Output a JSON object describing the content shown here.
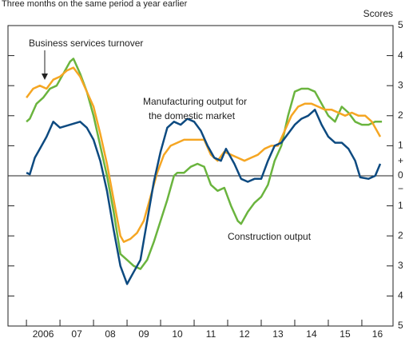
{
  "chart_data": {
    "type": "line",
    "subtitle": "Three months on the same period a year earlier",
    "y_axis_label": "Scores",
    "plus_label": "+",
    "minus_label": "−",
    "annotations": [
      "Business services turnover",
      "Manufacturing output for",
      "the domestic market",
      "Construction output"
    ],
    "categories": [
      "2006",
      "07",
      "08",
      "09",
      "10",
      "11",
      "12",
      "13",
      "14",
      "15",
      "16"
    ],
    "xlim": [
      2005.45,
      2016.93
    ],
    "xticks": [
      2006,
      2007,
      2008,
      2009,
      2010,
      2011,
      2012,
      2013,
      2014,
      2015,
      2016
    ],
    "ylim": [
      -5,
      5
    ],
    "yticks": [
      {
        "value": -5,
        "label": "5"
      },
      {
        "value": -4,
        "label": "4"
      },
      {
        "value": -3,
        "label": "3"
      },
      {
        "value": -2,
        "label": "2"
      },
      {
        "value": -1,
        "label": "1"
      },
      0,
      1,
      2,
      3,
      4,
      5
    ],
    "series": [
      {
        "name": "Construction output",
        "color": "#6ab43e",
        "x": [
          2006.0,
          2006.1,
          2006.3,
          2006.5,
          2006.7,
          2006.9,
          2007.1,
          2007.3,
          2007.4,
          2007.6,
          2007.8,
          2008.0,
          2008.2,
          2008.4,
          2008.6,
          2008.8,
          2009.0,
          2009.2,
          2009.4,
          2009.6,
          2009.8,
          2010.0,
          2010.2,
          2010.4,
          2010.5,
          2010.7,
          2010.9,
          2011.1,
          2011.3,
          2011.5,
          2011.7,
          2011.9,
          2012.1,
          2012.3,
          2012.4,
          2012.6,
          2012.8,
          2013.0,
          2013.2,
          2013.4,
          2013.6,
          2013.8,
          2014.0,
          2014.2,
          2014.4,
          2014.6,
          2014.8,
          2015.0,
          2015.2,
          2015.4,
          2015.6,
          2015.8,
          2016.0,
          2016.2,
          2016.4,
          2016.6
        ],
        "values": [
          1.8,
          1.9,
          2.4,
          2.6,
          2.9,
          3.0,
          3.4,
          3.8,
          3.9,
          3.4,
          2.8,
          2.0,
          1.0,
          0.0,
          -1.2,
          -2.6,
          -2.8,
          -3.0,
          -3.1,
          -2.8,
          -2.2,
          -1.5,
          -0.8,
          0.0,
          0.1,
          0.1,
          0.3,
          0.4,
          0.3,
          -0.3,
          -0.5,
          -0.4,
          -1.0,
          -1.5,
          -1.6,
          -1.2,
          -0.9,
          -0.7,
          -0.3,
          0.5,
          1.0,
          2.0,
          2.8,
          2.9,
          2.9,
          2.8,
          2.4,
          2.0,
          1.8,
          2.3,
          2.1,
          1.8,
          1.7,
          1.7,
          1.8,
          1.8
        ]
      },
      {
        "name": "Business services turnover",
        "color": "#f5a623",
        "x": [
          2006.0,
          2006.2,
          2006.4,
          2006.6,
          2006.8,
          2007.0,
          2007.2,
          2007.4,
          2007.6,
          2007.8,
          2008.0,
          2008.2,
          2008.4,
          2008.6,
          2008.8,
          2008.9,
          2009.1,
          2009.3,
          2009.5,
          2009.7,
          2009.9,
          2010.1,
          2010.3,
          2010.5,
          2010.7,
          2011.0,
          2011.3,
          2011.5,
          2011.7,
          2011.9,
          2012.1,
          2012.3,
          2012.5,
          2012.7,
          2012.9,
          2013.1,
          2013.3,
          2013.5,
          2013.7,
          2013.9,
          2014.1,
          2014.3,
          2014.5,
          2014.7,
          2014.9,
          2015.1,
          2015.3,
          2015.5,
          2015.7,
          2015.9,
          2016.1,
          2016.3,
          2016.55
        ],
        "values": [
          2.6,
          2.9,
          3.0,
          2.9,
          3.2,
          3.3,
          3.5,
          3.6,
          3.3,
          2.8,
          2.3,
          1.4,
          0.4,
          -0.8,
          -2.0,
          -2.2,
          -2.1,
          -1.9,
          -1.5,
          -0.7,
          0.1,
          0.7,
          1.0,
          1.1,
          1.2,
          1.2,
          1.2,
          0.7,
          0.5,
          0.8,
          0.7,
          0.6,
          0.5,
          0.6,
          0.7,
          0.9,
          1.0,
          1.0,
          1.5,
          2.0,
          2.3,
          2.4,
          2.4,
          2.3,
          2.2,
          2.2,
          2.1,
          2.0,
          2.1,
          2.0,
          2.0,
          1.8,
          1.3
        ]
      },
      {
        "name": "Manufacturing output for the domestic market",
        "color": "#0d4a80",
        "x": [
          2006.0,
          2006.1,
          2006.25,
          2006.4,
          2006.6,
          2006.8,
          2007.0,
          2007.3,
          2007.6,
          2007.8,
          2008.0,
          2008.2,
          2008.4,
          2008.6,
          2008.8,
          2009.0,
          2009.2,
          2009.4,
          2009.6,
          2009.8,
          2010.0,
          2010.2,
          2010.4,
          2010.6,
          2010.8,
          2011.0,
          2011.2,
          2011.4,
          2011.6,
          2011.8,
          2011.95,
          2012.2,
          2012.4,
          2012.6,
          2012.8,
          2013.0,
          2013.2,
          2013.4,
          2013.6,
          2013.8,
          2014.0,
          2014.2,
          2014.4,
          2014.6,
          2014.8,
          2015.0,
          2015.2,
          2015.4,
          2015.6,
          2015.8,
          2015.95,
          2016.2,
          2016.4,
          2016.55
        ],
        "values": [
          0.1,
          0.05,
          0.6,
          0.9,
          1.3,
          1.8,
          1.6,
          1.7,
          1.8,
          1.6,
          1.2,
          0.5,
          -0.5,
          -1.8,
          -3.0,
          -3.6,
          -3.2,
          -2.8,
          -1.5,
          -0.2,
          0.8,
          1.6,
          1.8,
          1.7,
          1.9,
          1.8,
          1.5,
          1.0,
          0.6,
          0.5,
          0.9,
          0.4,
          -0.1,
          -0.2,
          -0.1,
          -0.1,
          0.5,
          1.0,
          1.1,
          1.4,
          1.7,
          1.9,
          2.0,
          2.2,
          1.7,
          1.3,
          1.1,
          1.1,
          0.9,
          0.5,
          -0.05,
          -0.1,
          0.0,
          0.4
        ]
      }
    ]
  }
}
